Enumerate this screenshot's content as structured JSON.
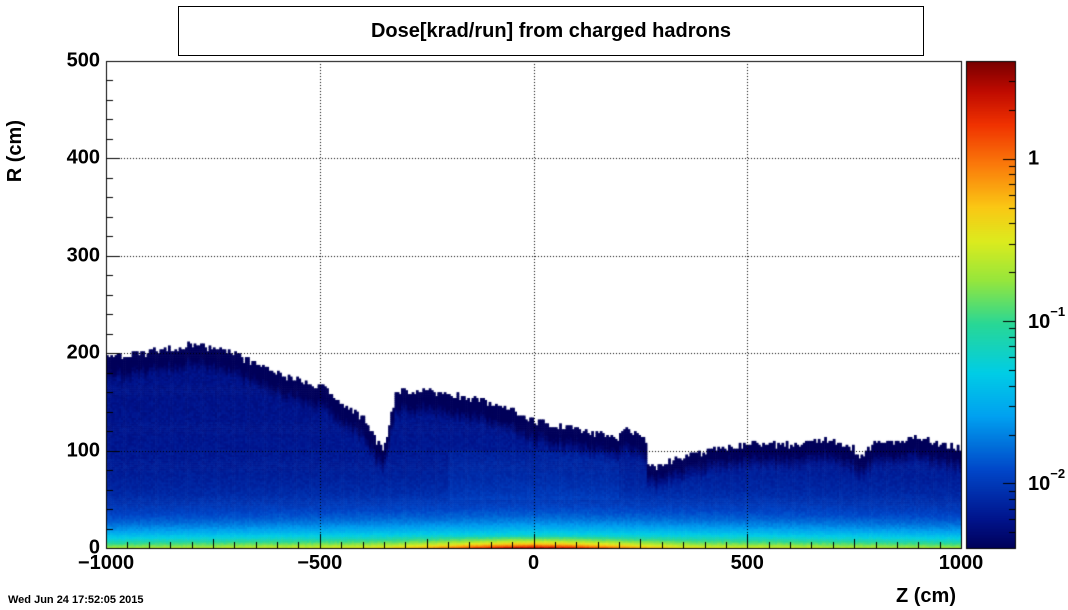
{
  "chart_data": {
    "type": "heatmap",
    "title": "Dose[krad/run] from charged hadrons",
    "xlabel": "Z (cm)",
    "ylabel": "R (cm)",
    "xlim": [
      -1000,
      1000
    ],
    "ylim": [
      0,
      500
    ],
    "x_ticks": [
      -1000,
      -500,
      0,
      500,
      1000
    ],
    "y_ticks": [
      0,
      100,
      200,
      300,
      400,
      500
    ],
    "x_tick_labels": [
      "−1000",
      "−500",
      "0",
      "500",
      "1000"
    ],
    "y_tick_labels": [
      "0",
      "100",
      "200",
      "300",
      "400",
      "500"
    ],
    "colorscale": {
      "log": true,
      "zlim": [
        0.004,
        4
      ],
      "ticks": [
        {
          "value": 1,
          "mantissa": "1",
          "exponent": ""
        },
        {
          "value": 0.1,
          "mantissa": "10",
          "exponent": "−1"
        },
        {
          "value": 0.01,
          "mantissa": "10",
          "exponent": "−2"
        }
      ],
      "palette": "rainbow (dark blue → cyan → green → yellow → orange → dark red)"
    },
    "grid": true,
    "upper_edge_profile": {
      "z": [
        -1000,
        -900,
        -800,
        -700,
        -600,
        -500,
        -400,
        -370,
        -350,
        -340,
        -320,
        -200,
        -100,
        0,
        100,
        200,
        210,
        260,
        270,
        300,
        400,
        500,
        600,
        700,
        750,
        770,
        800,
        900,
        1000
      ],
      "r": [
        195,
        200,
        208,
        198,
        178,
        165,
        133,
        110,
        97,
        120,
        162,
        158,
        148,
        130,
        120,
        112,
        125,
        110,
        80,
        85,
        98,
        105,
        105,
        110,
        100,
        92,
        108,
        112,
        100
      ]
    },
    "high_dose_core": {
      "z_range": [
        -200,
        200
      ],
      "r_range": [
        0,
        10
      ],
      "peak_value_approx": 3
    }
  },
  "footer": {
    "timestamp": "Wed Jun 24 17:52:05 2015"
  }
}
